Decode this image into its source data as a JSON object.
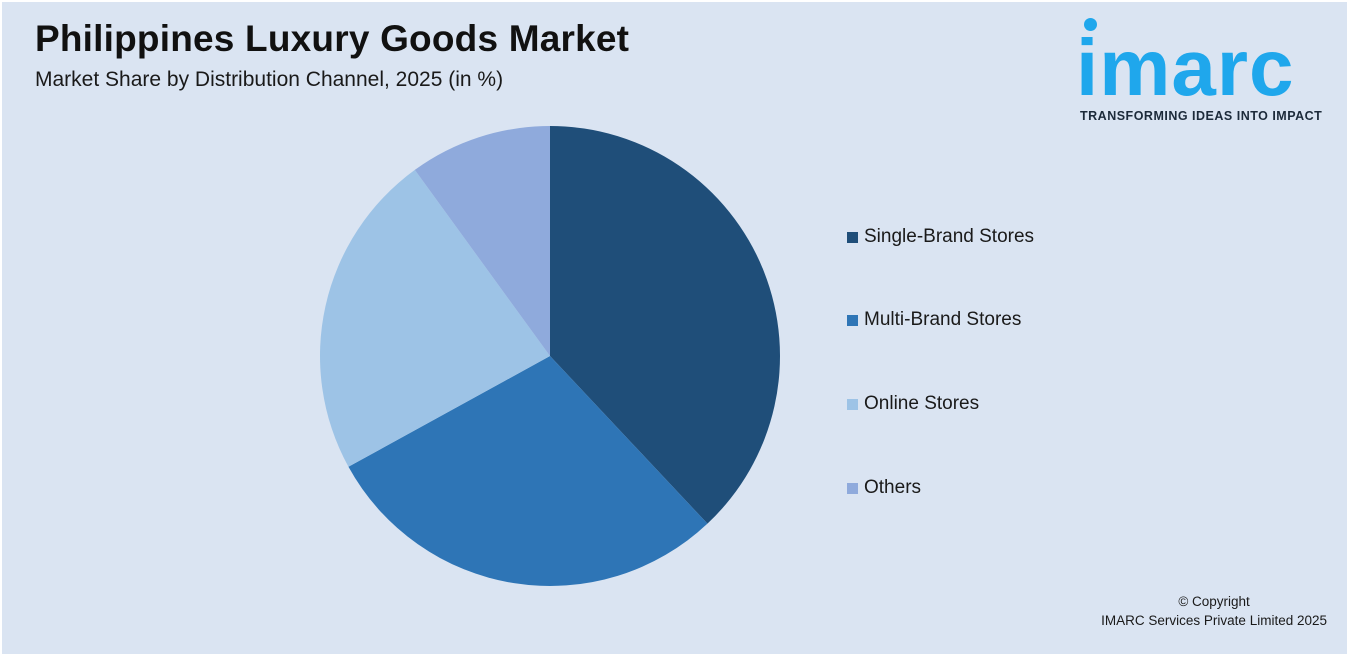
{
  "header": {
    "title": "Philippines Luxury Goods Market",
    "subtitle": "Market Share by Distribution Channel, 2025 (in %)"
  },
  "logo": {
    "word": "imarc",
    "tagline": "TRANSFORMING IDEAS INTO IMPACT",
    "color": "#1fa7ec"
  },
  "chart_data": {
    "type": "pie",
    "title": "Philippines Luxury Goods Market",
    "subtitle": "Market Share by Distribution Channel, 2025 (in %)",
    "categories": [
      "Single-Brand Stores",
      "Multi-Brand Stores",
      "Online Stores",
      "Others"
    ],
    "values": [
      38,
      29,
      23,
      10
    ],
    "colors": [
      "#1f4e79",
      "#2e75b6",
      "#9dc3e6",
      "#8faadc"
    ],
    "legend_position": "right"
  },
  "footer": {
    "copyright_line1": "© Copyright",
    "copyright_line2": "IMARC Services Private Limited 2025"
  }
}
